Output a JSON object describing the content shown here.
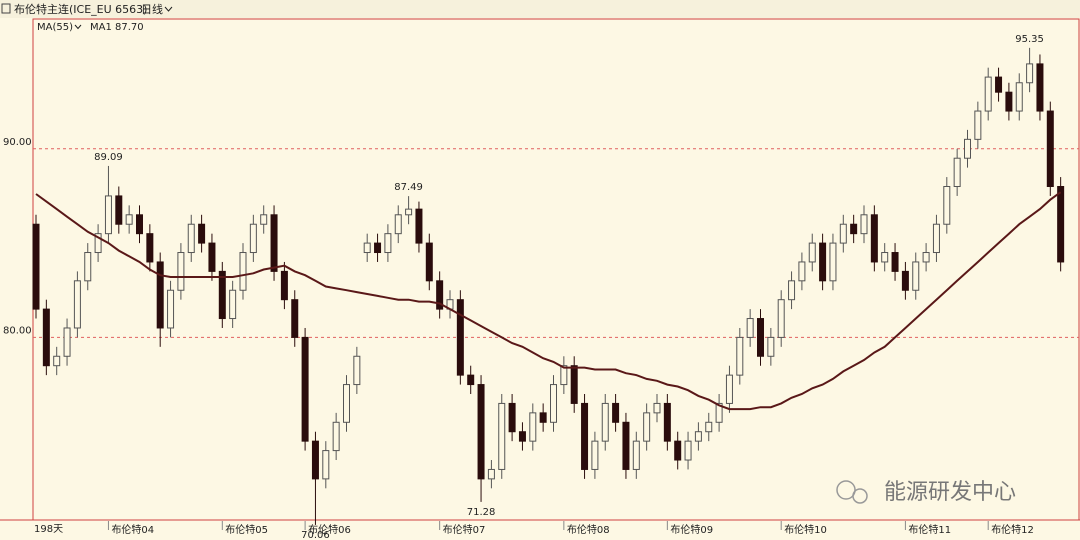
{
  "chart_data": {
    "type": "candlestick",
    "title": "布伦特主连(ICE_EU 6563)",
    "period": "日线",
    "days_label": "198天",
    "watermark": "能源研发中心",
    "ylim": [
      70.32,
      96.88
    ],
    "yticks": [
      {
        "value": 80,
        "label": "80.00"
      },
      {
        "value": 90,
        "label": "90.00"
      }
    ],
    "grid": true,
    "grid_color": "#e06060",
    "up_color": "#555555",
    "down_color": "#2a0c0c",
    "xticks": [
      {
        "value": 7,
        "label": "布伦特04"
      },
      {
        "value": 18,
        "label": "布伦特05"
      },
      {
        "value": 26,
        "label": "布伦特06"
      },
      {
        "value": 39,
        "label": "布伦特07"
      },
      {
        "value": 51,
        "label": "布伦特08"
      },
      {
        "value": 61,
        "label": "布伦特09"
      },
      {
        "value": 72,
        "label": "布伦特10"
      },
      {
        "value": 84,
        "label": "布伦特11"
      },
      {
        "value": 92,
        "label": "布伦特12"
      }
    ],
    "open": [
      86,
      81.5,
      78.5,
      79,
      80.5,
      83,
      84.5,
      85.5,
      87.5,
      86,
      86.5,
      85.5,
      84,
      80.5,
      82.5,
      84.5,
      86,
      85,
      83.5,
      81,
      82.5,
      84.5,
      86,
      86.5,
      83.5,
      82,
      80,
      74.5,
      72.5,
      74,
      75.5,
      77.5,
      84.5,
      85,
      84.5,
      85.5,
      86.5,
      86.8,
      85,
      83,
      81.5,
      82,
      78,
      77.5,
      72.5,
      73,
      76.5,
      75,
      74.5,
      76,
      75.5,
      77.5,
      78.5,
      76.5,
      73,
      74.5,
      76.5,
      75.5,
      73,
      74.5,
      76,
      76.5,
      74.5,
      73.5,
      74.5,
      75,
      75.5,
      76.5,
      78,
      80,
      81,
      79,
      80,
      82,
      83,
      84,
      85,
      83,
      85,
      86,
      85.5,
      86.5,
      84,
      84.5,
      83.5,
      82.5,
      84,
      84.5,
      86,
      88,
      89.5,
      90.5,
      92,
      93.8,
      93,
      92,
      93.5,
      94.5,
      92,
      88
    ],
    "high": [
      86.5,
      82,
      79.5,
      81,
      83.5,
      85,
      86,
      89.09,
      88,
      87,
      87,
      86,
      84.5,
      83,
      85,
      86.5,
      86.5,
      85.5,
      84,
      83,
      85,
      86.5,
      87,
      87,
      84,
      82.5,
      80.5,
      75,
      74.5,
      76,
      78,
      79.5,
      85.5,
      85.5,
      86,
      87,
      87.49,
      87.2,
      85.5,
      83.5,
      82.5,
      82.5,
      78.5,
      78,
      73.5,
      77,
      77,
      75.5,
      76.5,
      76.5,
      78,
      79,
      79,
      77,
      75,
      77,
      77,
      76,
      75,
      76.5,
      77,
      77,
      75,
      75,
      75.5,
      76,
      77,
      78.5,
      80.5,
      81.5,
      81.5,
      80.5,
      82.5,
      83.5,
      84.5,
      85.5,
      85.5,
      85.5,
      86.5,
      86.5,
      87,
      87,
      85,
      85,
      84,
      84.5,
      85,
      86.5,
      88.5,
      90,
      91,
      92.5,
      94.3,
      94.3,
      93.5,
      94,
      95.35,
      95,
      92.5,
      88.5
    ],
    "low": [
      81,
      78,
      78,
      78.5,
      80,
      82.5,
      84,
      85,
      85.5,
      85.5,
      85,
      83.5,
      79.5,
      80,
      82,
      84,
      84.5,
      83,
      80.5,
      80.5,
      82,
      84,
      85.5,
      83,
      81.5,
      79.5,
      74,
      70.06,
      72,
      73.5,
      75,
      77,
      84,
      84,
      84,
      85,
      86,
      84.5,
      82.5,
      81,
      81,
      77.5,
      77,
      71.28,
      72,
      72.5,
      74.5,
      74,
      74,
      75,
      75,
      77,
      76,
      72.5,
      72.5,
      74,
      75,
      72.5,
      72.5,
      74,
      75.5,
      74,
      73,
      73,
      74,
      74.5,
      75,
      76,
      77.5,
      79.5,
      78.5,
      78.5,
      79.5,
      81.5,
      82.5,
      83.5,
      82.5,
      82.5,
      84.5,
      85,
      85,
      83.5,
      83.5,
      83,
      82,
      82,
      83.5,
      84,
      85.5,
      87.5,
      89,
      90,
      91.5,
      92.5,
      91.5,
      91.5,
      93,
      91.5,
      87.5,
      83.5
    ],
    "close": [
      81.5,
      78.5,
      79,
      80.5,
      83,
      84.5,
      85.5,
      87.5,
      86,
      86.5,
      85.5,
      84,
      80.5,
      82.5,
      84.5,
      86,
      85,
      83.5,
      81,
      82.5,
      84.5,
      86,
      86.5,
      83.5,
      82,
      80,
      74.5,
      72.5,
      74,
      75.5,
      77.5,
      79,
      85,
      84.5,
      85.5,
      86.5,
      86.8,
      85,
      83,
      81.5,
      82,
      78,
      77.5,
      72.5,
      73,
      76.5,
      75,
      74.5,
      76,
      75.5,
      77.5,
      78.5,
      76.5,
      73,
      74.5,
      76.5,
      75.5,
      73,
      74.5,
      76,
      76.5,
      74.5,
      73.5,
      74.5,
      75,
      75.5,
      76.5,
      78,
      80,
      81,
      79,
      80,
      82,
      83,
      84,
      85,
      83,
      85,
      86,
      85.5,
      86.5,
      84,
      84.5,
      83.5,
      82.5,
      84,
      84.5,
      86,
      88,
      89.5,
      90.5,
      92,
      93.8,
      93,
      92,
      93.5,
      94.5,
      92,
      88,
      84
    ],
    "ma": {
      "name": "MA(55)",
      "legend": "MA1 87.70",
      "color": "#5a1818",
      "values": [
        87.6,
        87.2,
        86.8,
        86.4,
        86.0,
        85.6,
        85.3,
        85.0,
        84.6,
        84.3,
        84.0,
        83.6,
        83.3,
        83.2,
        83.2,
        83.2,
        83.2,
        83.2,
        83.2,
        83.2,
        83.3,
        83.4,
        83.6,
        83.7,
        83.8,
        83.5,
        83.3,
        83.0,
        82.7,
        82.6,
        82.5,
        82.4,
        82.3,
        82.2,
        82.1,
        82.0,
        82.0,
        81.9,
        81.9,
        81.8,
        81.5,
        81.2,
        80.9,
        80.6,
        80.3,
        80.0,
        79.7,
        79.5,
        79.2,
        78.9,
        78.7,
        78.4,
        78.4,
        78.4,
        78.3,
        78.3,
        78.3,
        78.1,
        78.0,
        77.8,
        77.7,
        77.5,
        77.4,
        77.2,
        76.9,
        76.7,
        76.4,
        76.2,
        76.2,
        76.2,
        76.3,
        76.3,
        76.5,
        76.8,
        77.0,
        77.3,
        77.5,
        77.8,
        78.2,
        78.5,
        78.8,
        79.2,
        79.5,
        80.0,
        80.5,
        81.0,
        81.5,
        82.0,
        82.5,
        83.0,
        83.5,
        84.0,
        84.5,
        85.0,
        85.5,
        86.0,
        86.4,
        86.8,
        87.3,
        87.7
      ]
    },
    "annotations": [
      {
        "index": 7,
        "value": 89.09,
        "position": "above"
      },
      {
        "index": 36,
        "value": 87.49,
        "position": "above"
      },
      {
        "index": 96,
        "value": 95.35,
        "position": "above"
      },
      {
        "index": 43,
        "value": 71.28,
        "position": "below"
      },
      {
        "index": 27,
        "value": 70.06,
        "position": "below"
      }
    ]
  }
}
